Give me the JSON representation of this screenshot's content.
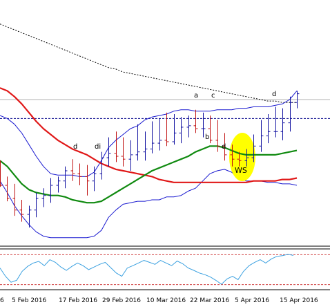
{
  "chart_data": {
    "type": "line",
    "x_tick_labels": [
      "6",
      "5 Feb 2016",
      "17 Feb 2016",
      "29 Feb 2016",
      "10 Mar 2016",
      "22 Mar 2016",
      "5 Apr 2016",
      "15 Apr 2016"
    ],
    "annotations": [
      "d",
      "di",
      "a",
      "c",
      "d",
      "b",
      "d",
      "WS"
    ],
    "colors": {
      "bars": "#1010a0",
      "ma_red": "#e01818",
      "ma_green": "#108a10",
      "bollinger": "#1a1ad0",
      "ma_long": "#000000",
      "dashed_level": "#00008b",
      "level_line": "#b0b0b0",
      "highlight": "#ffff00",
      "oscillator": "#3aa0e0",
      "osc_levels": "#d04040"
    },
    "grid": false,
    "main_series": {
      "ma_red": [
        0.94,
        0.92,
        0.88,
        0.83,
        0.77,
        0.71,
        0.66,
        0.62,
        0.58,
        0.55,
        0.52,
        0.5,
        0.48,
        0.45,
        0.42,
        0.4,
        0.38,
        0.37,
        0.36,
        0.35,
        0.34,
        0.33,
        0.31,
        0.3,
        0.29,
        0.29,
        0.29,
        0.29,
        0.29,
        0.29,
        0.29,
        0.29,
        0.29,
        0.29,
        0.29,
        0.3,
        0.3,
        0.3,
        0.3,
        0.31,
        0.31,
        0.32
      ],
      "ma_green": [
        0.44,
        0.4,
        0.34,
        0.28,
        0.24,
        0.22,
        0.21,
        0.2,
        0.2,
        0.19,
        0.17,
        0.16,
        0.15,
        0.15,
        0.16,
        0.19,
        0.22,
        0.25,
        0.28,
        0.31,
        0.34,
        0.37,
        0.39,
        0.41,
        0.43,
        0.45,
        0.47,
        0.5,
        0.52,
        0.54,
        0.54,
        0.53,
        0.51,
        0.49,
        0.48,
        0.48,
        0.48,
        0.48,
        0.48,
        0.49,
        0.5,
        0.51
      ],
      "bb_upper": [
        0.75,
        0.73,
        0.69,
        0.63,
        0.55,
        0.47,
        0.4,
        0.35,
        0.34,
        0.34,
        0.34,
        0.33,
        0.33,
        0.36,
        0.44,
        0.53,
        0.58,
        0.62,
        0.66,
        0.68,
        0.72,
        0.74,
        0.75,
        0.76,
        0.78,
        0.79,
        0.79,
        0.78,
        0.78,
        0.78,
        0.79,
        0.79,
        0.79,
        0.8,
        0.8,
        0.81,
        0.81,
        0.81,
        0.82,
        0.83,
        0.86,
        0.92
      ],
      "bb_lower": [
        0.3,
        0.22,
        0.13,
        0.06,
        0.0,
        -0.05,
        -0.08,
        -0.09,
        -0.09,
        -0.09,
        -0.09,
        -0.09,
        -0.09,
        -0.08,
        -0.04,
        0.05,
        0.1,
        0.14,
        0.15,
        0.16,
        0.16,
        0.17,
        0.17,
        0.19,
        0.19,
        0.2,
        0.23,
        0.25,
        0.3,
        0.35,
        0.37,
        0.38,
        0.36,
        0.32,
        0.3,
        0.3,
        0.3,
        0.29,
        0.29,
        0.28,
        0.28,
        0.27
      ],
      "ma_long": [
        1.38,
        1.36,
        1.34,
        1.32,
        1.3,
        1.28,
        1.26,
        1.24,
        1.22,
        1.2,
        1.18,
        1.16,
        1.14,
        1.12,
        1.1,
        1.08,
        1.07,
        1.05,
        1.04,
        1.03,
        1.02,
        1.01,
        1.0,
        0.99,
        0.98,
        0.97,
        0.96,
        0.95,
        0.94,
        0.93,
        0.92,
        0.91,
        0.9,
        0.89,
        0.88,
        0.87,
        0.86,
        0.85,
        0.85,
        0.84,
        0.84,
        0.84
      ],
      "dashed_level": 0.73,
      "level_line": 0.86
    },
    "ohlc": {
      "open": [
        0.36,
        0.27,
        0.18,
        0.1,
        0.07,
        0.1,
        0.18,
        0.2,
        0.27,
        0.3,
        0.37,
        0.35,
        0.33,
        0.3,
        0.35,
        0.46,
        0.49,
        0.47,
        0.45,
        0.48,
        0.5,
        0.52,
        0.56,
        0.58,
        0.57,
        0.63,
        0.67,
        0.68,
        0.66,
        0.66,
        0.58,
        0.54,
        0.48,
        0.45,
        0.44,
        0.46,
        0.54,
        0.61,
        0.64,
        0.64,
        0.7,
        0.84
      ],
      "high": [
        0.44,
        0.33,
        0.28,
        0.17,
        0.13,
        0.22,
        0.25,
        0.32,
        0.33,
        0.4,
        0.45,
        0.42,
        0.41,
        0.4,
        0.5,
        0.6,
        0.64,
        0.6,
        0.58,
        0.69,
        0.64,
        0.71,
        0.73,
        0.77,
        0.76,
        0.74,
        0.75,
        0.79,
        0.77,
        0.75,
        0.72,
        0.63,
        0.55,
        0.5,
        0.52,
        0.62,
        0.72,
        0.76,
        0.81,
        0.8,
        0.88,
        0.92
      ],
      "low": [
        0.26,
        0.16,
        0.06,
        0.02,
        -0.02,
        0.05,
        0.12,
        0.15,
        0.22,
        0.25,
        0.3,
        0.27,
        0.2,
        0.23,
        0.31,
        0.4,
        0.43,
        0.4,
        0.37,
        0.44,
        0.44,
        0.49,
        0.51,
        0.54,
        0.55,
        0.56,
        0.6,
        0.63,
        0.6,
        0.56,
        0.5,
        0.44,
        0.4,
        0.4,
        0.4,
        0.43,
        0.5,
        0.56,
        0.6,
        0.58,
        0.64,
        0.8
      ],
      "close": [
        0.27,
        0.18,
        0.1,
        0.07,
        0.1,
        0.18,
        0.2,
        0.27,
        0.3,
        0.37,
        0.35,
        0.33,
        0.3,
        0.35,
        0.46,
        0.49,
        0.47,
        0.45,
        0.48,
        0.5,
        0.52,
        0.56,
        0.58,
        0.57,
        0.63,
        0.67,
        0.68,
        0.66,
        0.66,
        0.58,
        0.54,
        0.48,
        0.45,
        0.44,
        0.46,
        0.54,
        0.61,
        0.64,
        0.64,
        0.7,
        0.84,
        0.9
      ]
    },
    "oscillator": {
      "values": [
        0.55,
        0.3,
        0.12,
        0.18,
        0.45,
        0.6,
        0.7,
        0.75,
        0.62,
        0.8,
        0.72,
        0.58,
        0.48,
        0.6,
        0.7,
        0.62,
        0.5,
        0.58,
        0.66,
        0.72,
        0.56,
        0.4,
        0.3,
        0.55,
        0.62,
        0.7,
        0.78,
        0.72,
        0.66,
        0.78,
        0.7,
        0.62,
        0.76,
        0.68,
        0.55,
        0.48,
        0.4,
        0.35,
        0.28,
        0.18,
        0.06,
        0.22,
        0.3,
        0.2,
        0.45,
        0.62,
        0.72,
        0.8,
        0.7,
        0.82,
        0.9,
        0.92,
        0.96,
        0.93
      ],
      "upper_level": 0.95,
      "lower_level": 0.05
    }
  }
}
